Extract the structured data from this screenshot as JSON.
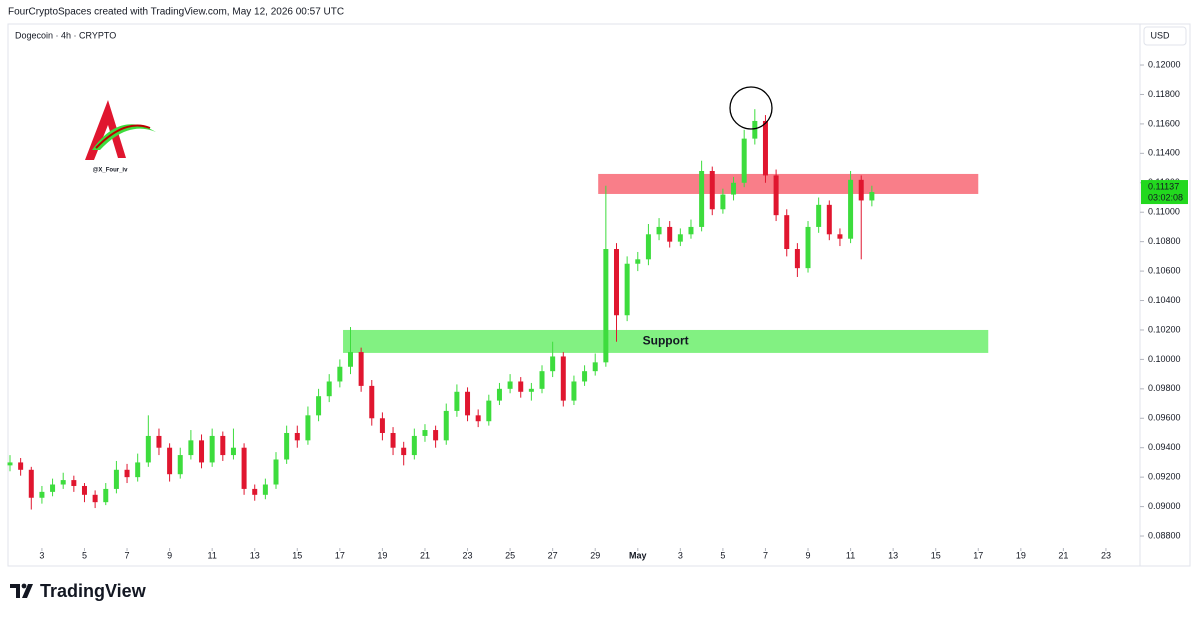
{
  "header": {
    "credit": "FourCryptoSpaces created with TradingView.com, May 12, 2026 00:57 UTC",
    "symbol": "Dogecoin · 4h · CRYPTO",
    "currency": "USD",
    "watermark": "@X_Four_iv",
    "brand": "TradingView"
  },
  "chart_data": {
    "type": "candlestick",
    "x": [
      0.5,
      1,
      1.5,
      2,
      2.5,
      3,
      3.5,
      4,
      4.5,
      5,
      5.5,
      6,
      6.5,
      7,
      7.5,
      8,
      8.5,
      9,
      9.5,
      10,
      10.5,
      11,
      11.5,
      12,
      12.5,
      13,
      13.5,
      14,
      14.5,
      15,
      15.5,
      16,
      16.5,
      17,
      17.5,
      18,
      18.5,
      19,
      19.5,
      20,
      20.5,
      21,
      21.5,
      22,
      22.5,
      23,
      23.5,
      24,
      24.5,
      25,
      25.5,
      26,
      26.5,
      27,
      27.5,
      28,
      28.5,
      29,
      29.5,
      30,
      30.5,
      31,
      31.5,
      32,
      32.5,
      33,
      33.5,
      34,
      34.5,
      35,
      35.5,
      36,
      36.5,
      37,
      37.5,
      38,
      38.5,
      39,
      39.5,
      40,
      40.5,
      41
    ],
    "series": [
      {
        "name": "Dogecoin",
        "up_color": "#3ddc3d",
        "down_color": "#e0162f",
        "ohlc": [
          [
            0.0928,
            0.0935,
            0.0924,
            0.093
          ],
          [
            0.093,
            0.0933,
            0.0921,
            0.0925
          ],
          [
            0.0925,
            0.0927,
            0.0898,
            0.0906
          ],
          [
            0.0906,
            0.0914,
            0.0902,
            0.091
          ],
          [
            0.091,
            0.0919,
            0.0907,
            0.0915
          ],
          [
            0.0915,
            0.0923,
            0.0912,
            0.0918
          ],
          [
            0.0918,
            0.0921,
            0.091,
            0.0914
          ],
          [
            0.0914,
            0.0916,
            0.0903,
            0.0908
          ],
          [
            0.0908,
            0.0911,
            0.0899,
            0.0903
          ],
          [
            0.0903,
            0.0916,
            0.0901,
            0.0912
          ],
          [
            0.0912,
            0.0931,
            0.0909,
            0.0925
          ],
          [
            0.0925,
            0.0929,
            0.0916,
            0.092
          ],
          [
            0.092,
            0.0936,
            0.0917,
            0.093
          ],
          [
            0.093,
            0.0962,
            0.0927,
            0.0948
          ],
          [
            0.0948,
            0.0953,
            0.0935,
            0.094
          ],
          [
            0.094,
            0.0943,
            0.0917,
            0.0922
          ],
          [
            0.0922,
            0.094,
            0.0919,
            0.0935
          ],
          [
            0.0935,
            0.0952,
            0.0932,
            0.0945
          ],
          [
            0.0945,
            0.0949,
            0.0926,
            0.093
          ],
          [
            0.093,
            0.0953,
            0.0927,
            0.0948
          ],
          [
            0.0948,
            0.0951,
            0.0931,
            0.0935
          ],
          [
            0.0935,
            0.0953,
            0.0932,
            0.094
          ],
          [
            0.094,
            0.0943,
            0.0908,
            0.0912
          ],
          [
            0.0912,
            0.0915,
            0.0904,
            0.0908
          ],
          [
            0.0908,
            0.0919,
            0.0905,
            0.0915
          ],
          [
            0.0915,
            0.0937,
            0.0912,
            0.0932
          ],
          [
            0.0932,
            0.0955,
            0.0929,
            0.095
          ],
          [
            0.095,
            0.0955,
            0.094,
            0.0945
          ],
          [
            0.0945,
            0.0968,
            0.0942,
            0.0962
          ],
          [
            0.0962,
            0.098,
            0.0958,
            0.0975
          ],
          [
            0.0975,
            0.099,
            0.0971,
            0.0985
          ],
          [
            0.0985,
            0.1,
            0.0981,
            0.0995
          ],
          [
            0.0995,
            0.1022,
            0.099,
            0.1005
          ],
          [
            0.1005,
            0.1008,
            0.0978,
            0.0982
          ],
          [
            0.0982,
            0.0986,
            0.0955,
            0.096
          ],
          [
            0.096,
            0.0964,
            0.0945,
            0.095
          ],
          [
            0.095,
            0.0954,
            0.0935,
            0.094
          ],
          [
            0.094,
            0.0944,
            0.0928,
            0.0935
          ],
          [
            0.0935,
            0.0953,
            0.0932,
            0.0948
          ],
          [
            0.0948,
            0.0956,
            0.0944,
            0.0952
          ],
          [
            0.0952,
            0.0955,
            0.094,
            0.0945
          ],
          [
            0.0945,
            0.097,
            0.0942,
            0.0965
          ],
          [
            0.0965,
            0.0983,
            0.0961,
            0.0978
          ],
          [
            0.0978,
            0.0981,
            0.0958,
            0.0962
          ],
          [
            0.0962,
            0.0966,
            0.0954,
            0.0958
          ],
          [
            0.0958,
            0.0976,
            0.0955,
            0.0972
          ],
          [
            0.0972,
            0.0984,
            0.0969,
            0.098
          ],
          [
            0.098,
            0.099,
            0.0977,
            0.0985
          ],
          [
            0.0985,
            0.0988,
            0.0974,
            0.0978
          ],
          [
            0.0978,
            0.0984,
            0.0972,
            0.098
          ],
          [
            0.098,
            0.0996,
            0.0977,
            0.0992
          ],
          [
            0.0992,
            0.1012,
            0.0988,
            0.1002
          ],
          [
            0.1002,
            0.1005,
            0.0968,
            0.0972
          ],
          [
            0.0972,
            0.0989,
            0.0969,
            0.0985
          ],
          [
            0.0985,
            0.0996,
            0.0982,
            0.0992
          ],
          [
            0.0992,
            0.1004,
            0.0989,
            0.0998
          ],
          [
            0.0998,
            0.1118,
            0.0995,
            0.1075
          ],
          [
            0.1075,
            0.1079,
            0.1012,
            0.103
          ],
          [
            0.103,
            0.107,
            0.1026,
            0.1065
          ],
          [
            0.1065,
            0.1073,
            0.106,
            0.1068
          ],
          [
            0.1068,
            0.1092,
            0.1064,
            0.1085
          ],
          [
            0.1085,
            0.1096,
            0.1081,
            0.109
          ],
          [
            0.109,
            0.1094,
            0.1076,
            0.108
          ],
          [
            0.108,
            0.1089,
            0.1077,
            0.1085
          ],
          [
            0.1085,
            0.1095,
            0.1082,
            0.109
          ],
          [
            0.109,
            0.1135,
            0.1087,
            0.1128
          ],
          [
            0.1128,
            0.1131,
            0.1098,
            0.1102
          ],
          [
            0.1102,
            0.1116,
            0.1099,
            0.1112
          ],
          [
            0.1112,
            0.1124,
            0.1108,
            0.112
          ],
          [
            0.112,
            0.1156,
            0.1117,
            0.115
          ],
          [
            0.115,
            0.117,
            0.1146,
            0.1162
          ],
          [
            0.1162,
            0.1166,
            0.112,
            0.1125
          ],
          [
            0.1125,
            0.1129,
            0.1094,
            0.1098
          ],
          [
            0.1098,
            0.1102,
            0.107,
            0.1075
          ],
          [
            0.1075,
            0.1079,
            0.1056,
            0.1062
          ],
          [
            0.1062,
            0.1094,
            0.1059,
            0.109
          ],
          [
            0.109,
            0.111,
            0.1086,
            0.1105
          ],
          [
            0.1105,
            0.1108,
            0.1081,
            0.1085
          ],
          [
            0.1085,
            0.1089,
            0.1077,
            0.1082
          ],
          [
            0.1082,
            0.1128,
            0.1079,
            0.1122
          ],
          [
            0.1122,
            0.1125,
            0.1068,
            0.1108
          ],
          [
            0.1108,
            0.1118,
            0.1104,
            0.11137
          ]
        ]
      }
    ],
    "xlim": [
      0.5,
      53.6
    ],
    "xticks": [
      {
        "value": 2,
        "label": "3"
      },
      {
        "value": 4,
        "label": "5"
      },
      {
        "value": 6,
        "label": "7"
      },
      {
        "value": 8,
        "label": "9"
      },
      {
        "value": 10,
        "label": "11"
      },
      {
        "value": 12,
        "label": "13"
      },
      {
        "value": 14,
        "label": "15"
      },
      {
        "value": 16,
        "label": "17"
      },
      {
        "value": 18,
        "label": "19"
      },
      {
        "value": 20,
        "label": "21"
      },
      {
        "value": 22,
        "label": "23"
      },
      {
        "value": 24,
        "label": "25"
      },
      {
        "value": 26,
        "label": "27"
      },
      {
        "value": 28,
        "label": "29"
      },
      {
        "value": 30,
        "label": "May"
      },
      {
        "value": 32,
        "label": "3"
      },
      {
        "value": 34,
        "label": "5"
      },
      {
        "value": 36,
        "label": "7"
      },
      {
        "value": 38,
        "label": "9"
      },
      {
        "value": 40,
        "label": "11"
      },
      {
        "value": 42,
        "label": "13"
      },
      {
        "value": 44,
        "label": "15"
      },
      {
        "value": 46,
        "label": "17"
      },
      {
        "value": 48,
        "label": "19"
      },
      {
        "value": 50,
        "label": "21"
      },
      {
        "value": 52,
        "label": "23"
      }
    ],
    "ylim": [
      0.08739,
      0.12238
    ],
    "yticks": [
      {
        "value": 0.088,
        "label": "0.08800"
      },
      {
        "value": 0.09,
        "label": "0.09000"
      },
      {
        "value": 0.092,
        "label": "0.09200"
      },
      {
        "value": 0.094,
        "label": "0.09400"
      },
      {
        "value": 0.096,
        "label": "0.09600"
      },
      {
        "value": 0.098,
        "label": "0.09800"
      },
      {
        "value": 0.1,
        "label": "0.10000"
      },
      {
        "value": 0.102,
        "label": "0.10200"
      },
      {
        "value": 0.104,
        "label": "0.10400"
      },
      {
        "value": 0.106,
        "label": "0.10600"
      },
      {
        "value": 0.108,
        "label": "0.10800"
      },
      {
        "value": 0.11,
        "label": "0.11000"
      },
      {
        "value": 0.112,
        "label": "0.11200"
      },
      {
        "value": 0.114,
        "label": "0.11400"
      },
      {
        "value": 0.116,
        "label": "0.11600"
      },
      {
        "value": 0.118,
        "label": "0.11800"
      },
      {
        "value": 0.12,
        "label": "0.12000"
      }
    ],
    "last_price": 0.11137,
    "countdown": "03:02:08",
    "last_color": "#22d81e",
    "resistance": {
      "xlim": [
        28.14,
        46.0
      ],
      "ylim": [
        0.11124,
        0.1126
      ],
      "color": "#f8707c"
    },
    "support": {
      "label": "Support",
      "xlim": [
        16.15,
        46.47
      ],
      "ylim": [
        0.10044,
        0.102
      ],
      "color": "#74f074"
    }
  }
}
